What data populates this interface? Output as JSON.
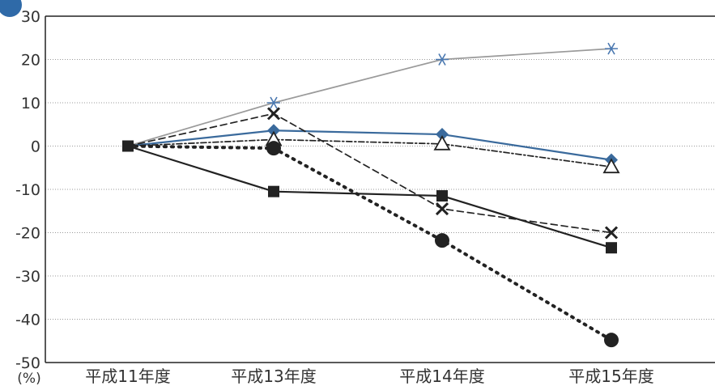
{
  "chart_data": {
    "type": "line",
    "categories": [
      "平成11年度",
      "平成13年度",
      "平成14年度",
      "平成15年度"
    ],
    "y_unit": "(%)",
    "ylim": [
      -50,
      30
    ],
    "yticks": [
      30,
      20,
      10,
      0,
      -10,
      -20,
      -30,
      -40,
      -50
    ],
    "grid": true,
    "series": [
      {
        "marker": "asterisk",
        "line": "solid",
        "color": "#9a9a9a",
        "marker_color": "#4a78b0",
        "values": [
          0,
          10,
          20,
          22.5
        ]
      },
      {
        "marker": "diamond",
        "line": "solid",
        "color": "#3a6a9c",
        "marker_color": "#3a6a9c",
        "values": [
          0,
          3.6,
          2.7,
          -3.2
        ]
      },
      {
        "marker": "triangle-open",
        "line": "dash-dot",
        "color": "#222222",
        "marker_color": "#222222",
        "values": [
          0,
          1.5,
          0.5,
          -4.8
        ]
      },
      {
        "marker": "cross",
        "line": "dashed",
        "color": "#222222",
        "marker_color": "#222222",
        "values": [
          0,
          7.5,
          -14.5,
          -20
        ]
      },
      {
        "marker": "square",
        "line": "solid",
        "color": "#222222",
        "marker_color": "#222222",
        "values": [
          0,
          -10.5,
          -11.5,
          -23.5
        ]
      },
      {
        "marker": "circle",
        "line": "dotted",
        "color": "#222222",
        "marker_color": "#222222",
        "values": [
          0,
          -0.5,
          -21.8,
          -44.8
        ]
      }
    ]
  }
}
